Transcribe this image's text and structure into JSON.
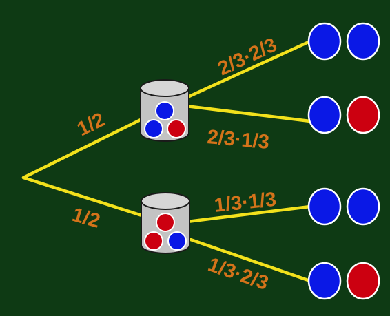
{
  "colors": {
    "background": "#0e3a14",
    "branch": "#f2e11c",
    "label": "#d4731a",
    "blue": "#0a18e6",
    "red": "#cc0010"
  },
  "tree": {
    "first_level": [
      {
        "probability": "1/2",
        "jar_balls": [
          "blue",
          "blue",
          "red"
        ],
        "outcomes": [
          {
            "probability": "2/3·2/3",
            "balls": [
              "blue",
              "blue"
            ]
          },
          {
            "probability": "2/3·1/3",
            "balls": [
              "blue",
              "red"
            ]
          }
        ]
      },
      {
        "probability": "1/2",
        "jar_balls": [
          "red",
          "red",
          "blue"
        ],
        "outcomes": [
          {
            "probability": "1/3·1/3",
            "balls": [
              "blue",
              "blue"
            ]
          },
          {
            "probability": "1/3·2/3",
            "balls": [
              "blue",
              "red"
            ]
          }
        ]
      }
    ]
  }
}
